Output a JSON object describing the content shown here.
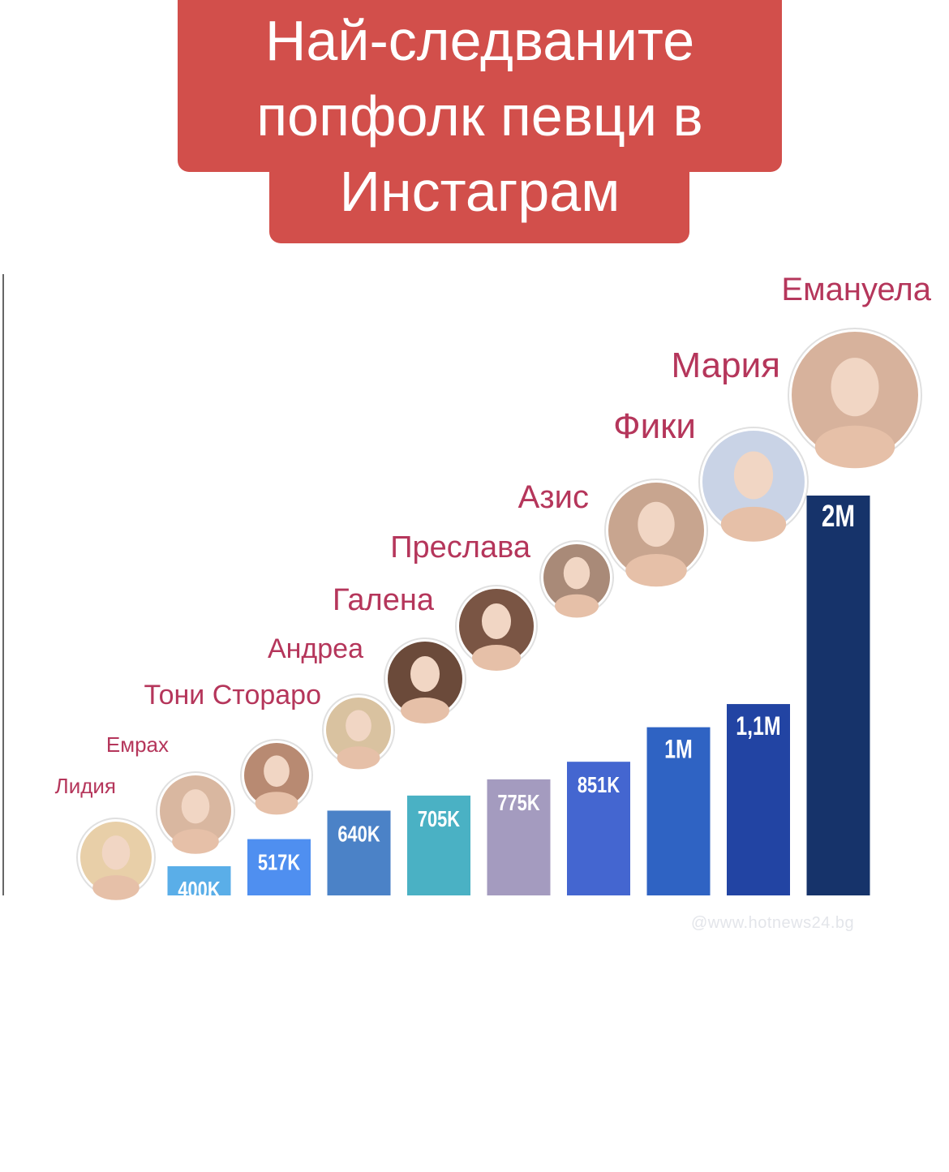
{
  "title_lines": [
    "Най-следваните",
    "попфолк певци в",
    "Инстаграм"
  ],
  "watermark": "@www.hotnews24.bg",
  "colors": {
    "title_bg": "#d24f4b",
    "name_text": "#b5365b",
    "value_text": "#ffffff"
  },
  "chart_data": {
    "type": "bar",
    "title": "Най-следваните попфолк певци в Инстаграм",
    "unit": "Instagram followers",
    "categories": [
      "Лидия",
      "Емрах",
      "Тони Стораро",
      "Андреа",
      "Галена",
      "Преслава",
      "Азис",
      "Фики",
      "Мария",
      "Емануела"
    ],
    "values": [
      null,
      400000,
      517000,
      640000,
      705000,
      775000,
      851000,
      1000000,
      1100000,
      2000000
    ],
    "value_labels": [
      "",
      "400K",
      "517K",
      "640K",
      "705K",
      "775K",
      "851K",
      "1M",
      "1,1M",
      "2M"
    ],
    "bar_colors": [
      "#ffffff",
      "#5aaee8",
      "#4f8ff0",
      "#4b82c7",
      "#4ab1c4",
      "#a49bbf",
      "#4466d0",
      "#2f63c3",
      "#2244a3",
      "#16336a"
    ],
    "avatars": [
      "blonde-woman-avatar",
      "bearded-man-avatar",
      "bearded-man-avatar",
      "blonde-woman-avatar",
      "dark-haired-woman-avatar",
      "dark-haired-woman-avatar",
      "bald-bearded-man-avatar",
      "bearded-man-avatar",
      "platinum-blonde-avatar",
      "woman-makeup-avatar"
    ],
    "grid": false,
    "legend": "none"
  }
}
